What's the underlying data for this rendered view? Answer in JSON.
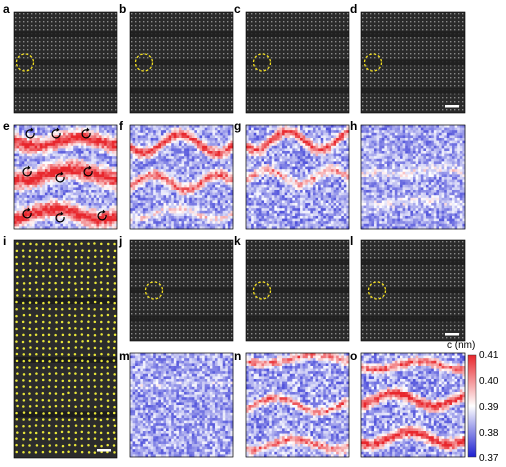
{
  "panel_letters": [
    "a",
    "b",
    "c",
    "d",
    "e",
    "f",
    "g",
    "h",
    "i",
    "j",
    "k",
    "l",
    "m",
    "n",
    "o"
  ],
  "colorbar": {
    "title": "c (nm)",
    "ticks": [
      "0.41",
      "0.40",
      "0.39",
      "0.38",
      "0.37"
    ],
    "colors": {
      "high": "#e8262c",
      "mid": "#ffffff",
      "low": "#1d1fd0"
    }
  },
  "colors": {
    "stem_background": "#2a2a2a",
    "dashed_circle": "#f5e11f",
    "atom_marker": "#e8e63a",
    "scale_bar": "#ffffff"
  },
  "markers": {
    "stem_circle": "yellow-dashed-circle",
    "rotation_arrows": "black-circular-arrow-icons"
  }
}
